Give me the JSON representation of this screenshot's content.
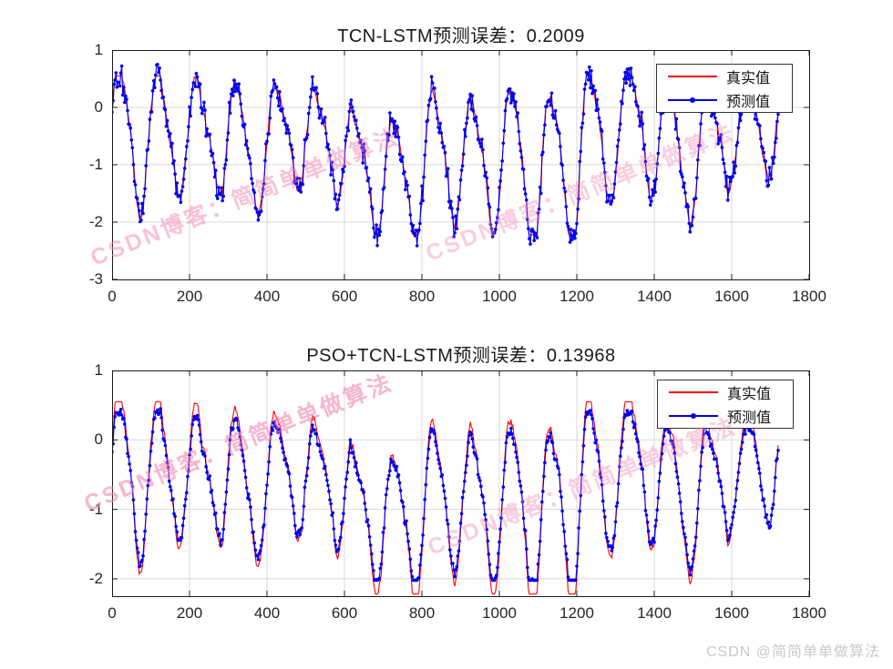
{
  "page": {
    "background": "#ffffff",
    "diagonal_watermark_text": "CSDN博客：简简单单做算法",
    "footer_watermark_text": "CSDN @简简单单做算法",
    "watermark_color": "#f285b2",
    "footer_color": "#c9c9c9"
  },
  "chart_data": [
    {
      "type": "line",
      "title": "TCN-LSTM预测误差：0.2009",
      "error_value": 0.2009,
      "xlabel": "",
      "ylabel": "",
      "xlim": [
        0,
        1800
      ],
      "ylim": [
        -3,
        1
      ],
      "xticks": [
        0,
        200,
        400,
        600,
        800,
        1000,
        1200,
        1400,
        1600,
        1800
      ],
      "yticks": [
        1,
        0,
        -1,
        -2,
        -3
      ],
      "grid": true,
      "grid_color": "#d8d8d8",
      "axis_color": "#1a1a1a",
      "legend": {
        "position": "top-right",
        "border": "#333333",
        "entries": [
          {
            "label": "真实值",
            "color": "#ff0000",
            "marker": "none"
          },
          {
            "label": "预测值",
            "color": "#0000ee",
            "marker": "dot"
          }
        ]
      },
      "series_model": {
        "description": "noisy periodic test signal, ~17 cycles, true value in red, prediction = true + noise",
        "seed": 7,
        "noise_seed": 101,
        "x_start": 0,
        "x_end": 1720,
        "x_step": 2.5,
        "period": 101.3,
        "base_level": -0.8,
        "signal_min": -2.22,
        "signal_max": 0.55,
        "prediction_noise_sd": 0.27,
        "prediction_undershoot": 1.0,
        "pred_clip_min": -2.85,
        "pred_clip_max": 0.75
      }
    },
    {
      "type": "line",
      "title": "PSO+TCN-LSTM预测误差：0.13968",
      "error_value": 0.13968,
      "xlabel": "",
      "ylabel": "",
      "xlim": [
        0,
        1800
      ],
      "ylim": [
        -2.25,
        1
      ],
      "xticks": [
        0,
        200,
        400,
        600,
        800,
        1000,
        1200,
        1400,
        1600,
        1800
      ],
      "yticks": [
        1,
        0,
        -1,
        -2
      ],
      "grid": true,
      "grid_color": "#d8d8d8",
      "axis_color": "#1a1a1a",
      "legend": {
        "position": "top-right",
        "border": "#333333",
        "entries": [
          {
            "label": "真实值",
            "color": "#ff0000",
            "marker": "none"
          },
          {
            "label": "预测值",
            "color": "#0000ee",
            "marker": "dot"
          }
        ]
      },
      "series_model": {
        "description": "same true signal in red, smoother prediction tracking closely, red spikes visible at extremes",
        "seed": 7,
        "noise_seed": 202,
        "x_start": 0,
        "x_end": 1720,
        "x_step": 2.5,
        "period": 101.3,
        "base_level": -0.8,
        "signal_min": -2.22,
        "signal_max": 0.55,
        "prediction_noise_sd": 0.075,
        "prediction_undershoot": 0.88,
        "pred_clip_min": -2.02,
        "pred_clip_max": 0.45
      }
    }
  ]
}
